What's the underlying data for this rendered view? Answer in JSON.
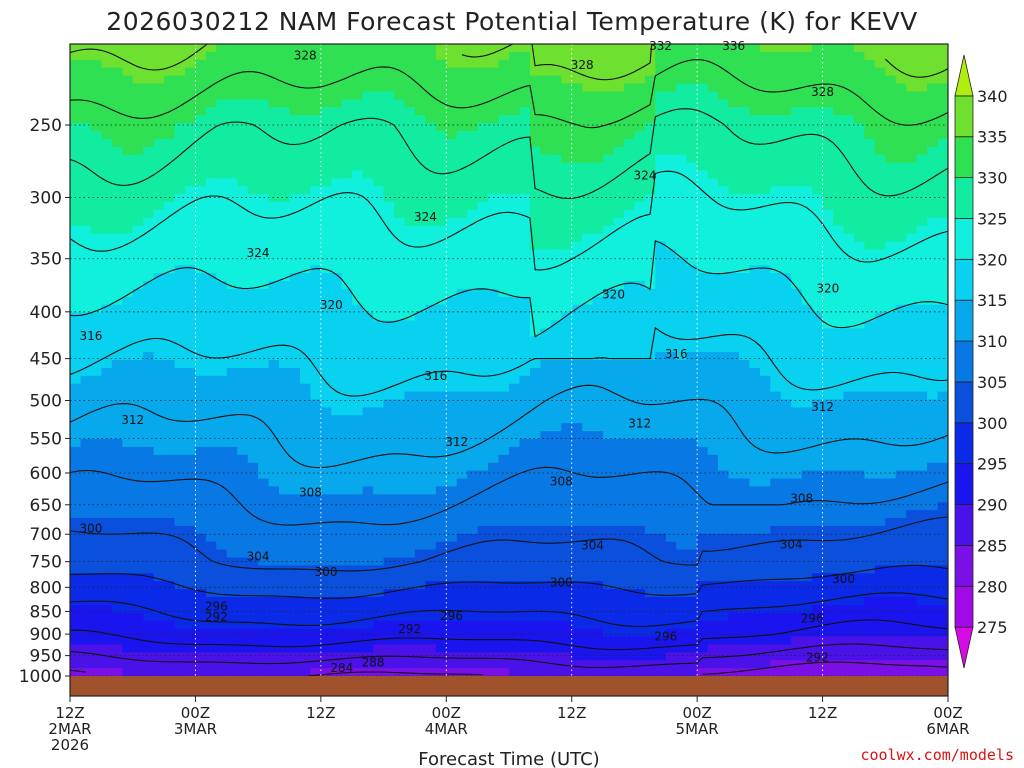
{
  "chart_data": {
    "type": "heatmap",
    "title": "2026030212 NAM Forecast Potential Temperature (K) for KEVV",
    "xlabel": "Forecast Time (UTC)",
    "ylabel": "",
    "credit": "coolwx.com/models",
    "y_scale": "log-pressure",
    "y_ticks": [
      "250",
      "300",
      "350",
      "400",
      "450",
      "500",
      "550",
      "600",
      "650",
      "700",
      "750",
      "800",
      "850",
      "900",
      "950",
      "1000"
    ],
    "x_ticks": [
      {
        "hour": 0,
        "lines": [
          "12Z",
          "2MAR",
          "2026"
        ]
      },
      {
        "hour": 12,
        "lines": [
          "00Z",
          "3MAR"
        ]
      },
      {
        "hour": 24,
        "lines": [
          "12Z"
        ]
      },
      {
        "hour": 36,
        "lines": [
          "00Z",
          "4MAR"
        ]
      },
      {
        "hour": 48,
        "lines": [
          "12Z"
        ]
      },
      {
        "hour": 60,
        "lines": [
          "00Z",
          "5MAR"
        ]
      },
      {
        "hour": 72,
        "lines": [
          "12Z"
        ]
      },
      {
        "hour": 84,
        "lines": [
          "00Z",
          "6MAR"
        ]
      }
    ],
    "grid": true,
    "colorbar": {
      "levels": [
        275,
        280,
        285,
        290,
        295,
        300,
        305,
        310,
        315,
        320,
        325,
        330,
        335,
        340
      ],
      "labels": [
        "340",
        "335",
        "330",
        "325",
        "320",
        "315",
        "310",
        "305",
        "300",
        "295",
        "290",
        "285",
        "280",
        "275"
      ],
      "colors": [
        "#d70ae6",
        "#a00ae6",
        "#7a10e6",
        "#4a12e8",
        "#1a14ee",
        "#0a2ae8",
        "#0a50dc",
        "#0878e4",
        "#08a8ec",
        "#08d2f0",
        "#10f0dc",
        "#12eca0",
        "#2ee052",
        "#6ee030",
        "#b0ee10"
      ]
    },
    "contour_levels": [
      276,
      280,
      284,
      288,
      292,
      296,
      300,
      304,
      308,
      312,
      316,
      320,
      324,
      328,
      332,
      336
    ],
    "contour_labels": [
      {
        "text": "328",
        "hour": 22.5,
        "p": 210
      },
      {
        "text": "332",
        "hour": 56.5,
        "p": 205
      },
      {
        "text": "336",
        "hour": 63.5,
        "p": 205
      },
      {
        "text": "328",
        "hour": 49,
        "p": 215
      },
      {
        "text": "328",
        "hour": 72,
        "p": 230
      },
      {
        "text": "324",
        "hour": 55,
        "p": 284
      },
      {
        "text": "324",
        "hour": 34,
        "p": 315
      },
      {
        "text": "324",
        "hour": 18,
        "p": 345
      },
      {
        "text": "320",
        "hour": 25,
        "p": 393
      },
      {
        "text": "320",
        "hour": 52,
        "p": 383
      },
      {
        "text": "320",
        "hour": 72.5,
        "p": 377
      },
      {
        "text": "316",
        "hour": 2,
        "p": 425
      },
      {
        "text": "316",
        "hour": 35,
        "p": 470
      },
      {
        "text": "316",
        "hour": 58,
        "p": 445
      },
      {
        "text": "312",
        "hour": 6,
        "p": 525
      },
      {
        "text": "312",
        "hour": 37,
        "p": 555
      },
      {
        "text": "312",
        "hour": 54.5,
        "p": 530
      },
      {
        "text": "312",
        "hour": 72,
        "p": 508
      },
      {
        "text": "308",
        "hour": 23,
        "p": 630
      },
      {
        "text": "308",
        "hour": 47,
        "p": 613
      },
      {
        "text": "308",
        "hour": 70,
        "p": 640
      },
      {
        "text": "300",
        "hour": 2,
        "p": 690
      },
      {
        "text": "304",
        "hour": 18,
        "p": 740
      },
      {
        "text": "300",
        "hour": 24.5,
        "p": 770
      },
      {
        "text": "304",
        "hour": 50,
        "p": 720
      },
      {
        "text": "304",
        "hour": 69,
        "p": 718
      },
      {
        "text": "300",
        "hour": 47,
        "p": 790
      },
      {
        "text": "300",
        "hour": 74,
        "p": 783
      },
      {
        "text": "296",
        "hour": 14,
        "p": 840
      },
      {
        "text": "292",
        "hour": 14,
        "p": 862
      },
      {
        "text": "296",
        "hour": 36.5,
        "p": 860
      },
      {
        "text": "292",
        "hour": 32.5,
        "p": 888
      },
      {
        "text": "296",
        "hour": 57,
        "p": 905
      },
      {
        "text": "296",
        "hour": 71,
        "p": 865
      },
      {
        "text": "292",
        "hour": 71.5,
        "p": 955
      },
      {
        "text": "288",
        "hour": 29,
        "p": 966
      },
      {
        "text": "284",
        "hour": 26,
        "p": 980
      }
    ]
  }
}
